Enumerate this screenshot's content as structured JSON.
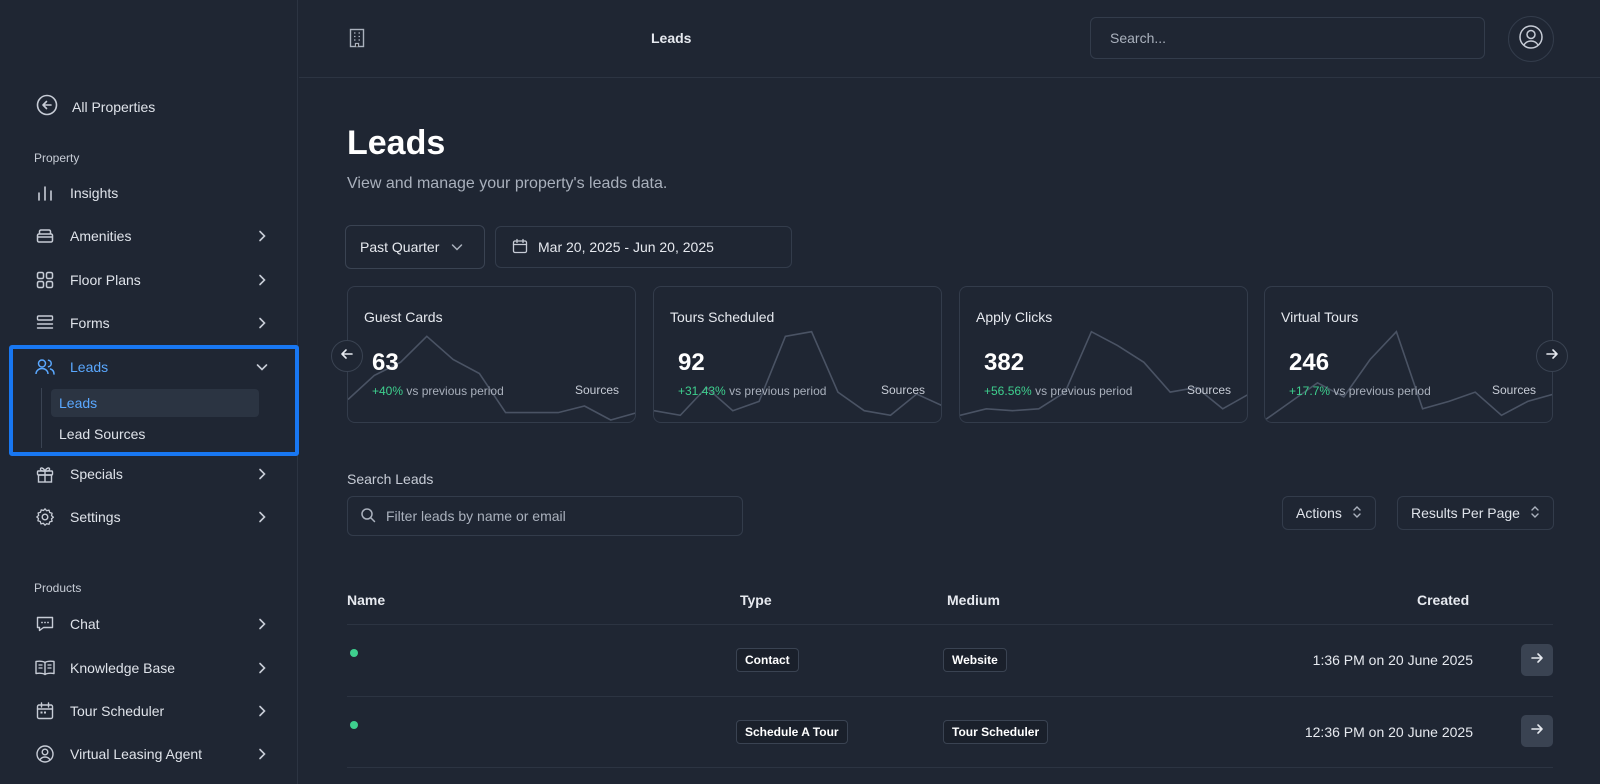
{
  "topbar": {
    "title": "Leads",
    "search_placeholder": "Search..."
  },
  "sidebar": {
    "all_properties": "All Properties",
    "property_label": "Property",
    "products_label": "Products",
    "property_items": [
      {
        "label": "Insights",
        "icon": "bar-chart-icon"
      },
      {
        "label": "Amenities",
        "icon": "sofa-icon"
      },
      {
        "label": "Floor Plans",
        "icon": "grid-icon"
      },
      {
        "label": "Forms",
        "icon": "form-icon"
      },
      {
        "label": "Leads",
        "icon": "users-icon"
      },
      {
        "label": "Specials",
        "icon": "gift-icon"
      },
      {
        "label": "Settings",
        "icon": "gear-icon"
      }
    ],
    "leads_sub": [
      "Leads",
      "Lead Sources"
    ],
    "product_items": [
      {
        "label": "Chat",
        "icon": "chat-icon"
      },
      {
        "label": "Knowledge Base",
        "icon": "book-icon"
      },
      {
        "label": "Tour Scheduler",
        "icon": "calendar-icon"
      },
      {
        "label": "Virtual Leasing Agent",
        "icon": "user-circle-icon"
      }
    ]
  },
  "main": {
    "title": "Leads",
    "subtitle": "View and manage your property's leads data.",
    "period": "Past Quarter",
    "date_range": "Mar 20, 2025 - Jun 20, 2025",
    "cards": [
      {
        "title": "Guest Cards",
        "value": "63",
        "change": "+40%",
        "suffix": "vs previous period",
        "sources": "Sources",
        "spark": [
          0.22,
          0.48,
          0.62,
          0.9,
          0.65,
          0.5,
          0.08,
          0.08,
          0.08,
          0.15,
          0.0,
          0.08
        ]
      },
      {
        "title": "Tours Scheduled",
        "value": "92",
        "change": "+31.43%",
        "suffix": "vs previous period",
        "sources": "Sources",
        "spark": [
          0.1,
          0.05,
          0.35,
          0.1,
          0.2,
          0.9,
          0.95,
          0.3,
          0.1,
          0.05,
          0.28,
          0.15
        ]
      },
      {
        "title": "Apply Clicks",
        "value": "382",
        "change": "+56.56%",
        "suffix": "vs previous period",
        "sources": "Sources",
        "spark": [
          0.05,
          0.12,
          0.1,
          0.12,
          0.3,
          0.95,
          0.8,
          0.62,
          0.3,
          0.35,
          0.12,
          0.28
        ]
      },
      {
        "title": "Virtual Tours",
        "value": "246",
        "change": "+17.7%",
        "suffix": "vs previous period",
        "sources": "Sources",
        "spark": [
          0.0,
          0.2,
          0.4,
          0.25,
          0.65,
          0.95,
          0.12,
          0.2,
          0.3,
          0.05,
          0.2,
          0.28
        ]
      }
    ],
    "search_label": "Search Leads",
    "filter_placeholder": "Filter leads by name or email",
    "actions_label": "Actions",
    "results_label": "Results Per Page",
    "columns": [
      "Name",
      "Type",
      "Medium",
      "Created"
    ],
    "rows": [
      {
        "type": "Contact",
        "medium": "Website",
        "created": "1:36 PM on 20 June 2025"
      },
      {
        "type": "Schedule A Tour",
        "medium": "Tour Scheduler",
        "created": "12:36 PM on 20 June 2025"
      }
    ]
  }
}
